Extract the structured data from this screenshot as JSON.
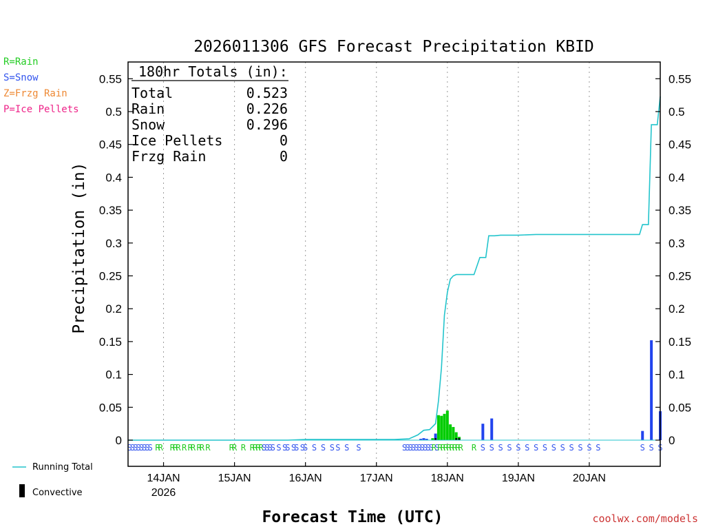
{
  "chart_data": {
    "type": "bar+line",
    "title": "2026011306 GFS Forecast Precipitation KBID",
    "xlabel": "Forecast Time (UTC)",
    "ylabel": "Precipitation (in)",
    "ylim": [
      0,
      0.57
    ],
    "yticks": [
      0,
      0.05,
      0.1,
      0.15,
      0.2,
      0.25,
      0.3,
      0.35,
      0.4,
      0.45,
      0.5,
      0.55
    ],
    "ytick_labels": [
      "0",
      "0.05",
      "0.1",
      "0.15",
      "0.2",
      "0.25",
      "0.3",
      "0.35",
      "0.4",
      "0.45",
      "0.5",
      "0.55"
    ],
    "x_range_hours": [
      6,
      186
    ],
    "x_units": "forecast hour (0 = 2026-01-13 06Z)",
    "x_ticks": [
      {
        "hour": 18,
        "label": "14JAN",
        "sublabel": "2026"
      },
      {
        "hour": 42,
        "label": "15JAN",
        "sublabel": ""
      },
      {
        "hour": 66,
        "label": "16JAN",
        "sublabel": ""
      },
      {
        "hour": 90,
        "label": "17JAN",
        "sublabel": ""
      },
      {
        "hour": 114,
        "label": "18JAN",
        "sublabel": ""
      },
      {
        "hour": 138,
        "label": "19JAN",
        "sublabel": ""
      },
      {
        "hour": 162,
        "label": "20JAN",
        "sublabel": ""
      }
    ],
    "totals_box": {
      "header": "180hr Totals (in):",
      "rows": [
        {
          "label": "Total",
          "value": "0.523"
        },
        {
          "label": "Rain",
          "value": "0.226"
        },
        {
          "label": "Snow",
          "value": "0.296"
        },
        {
          "label": "Ice Pellets",
          "value": "0"
        },
        {
          "label": "Frzg Rain",
          "value": "0"
        }
      ]
    },
    "precip_type_legend": [
      {
        "text": "R=Rain",
        "color": "#22cc22"
      },
      {
        "text": "S=Snow",
        "color": "#3355ee"
      },
      {
        "text": "Z=Frzg Rain",
        "color": "#ee8833"
      },
      {
        "text": "P=Ice Pellets",
        "color": "#ee2288"
      }
    ],
    "series_legend": {
      "running_total": "Running Total",
      "convective": "Convective"
    },
    "colors": {
      "rain": "#00cc00",
      "snow": "#2244ee",
      "running_total": "#22c4cc",
      "convective": "#000000"
    },
    "bars": [
      {
        "hour": 105,
        "value": 0.002,
        "type": "snow"
      },
      {
        "hour": 106,
        "value": 0.003,
        "type": "snow"
      },
      {
        "hour": 107,
        "value": 0.002,
        "type": "snow"
      },
      {
        "hour": 109,
        "value": 0.003,
        "type": "rain"
      },
      {
        "hour": 110,
        "value": 0.01,
        "type": "snow"
      },
      {
        "hour": 111,
        "value": 0.038,
        "type": "rain"
      },
      {
        "hour": 112,
        "value": 0.037,
        "type": "rain"
      },
      {
        "hour": 113,
        "value": 0.04,
        "type": "rain"
      },
      {
        "hour": 114,
        "value": 0.045,
        "type": "rain"
      },
      {
        "hour": 115,
        "value": 0.024,
        "type": "rain"
      },
      {
        "hour": 116,
        "value": 0.02,
        "type": "rain"
      },
      {
        "hour": 117,
        "value": 0.012,
        "type": "rain"
      },
      {
        "hour": 118,
        "value": 0.005,
        "type": "rain"
      },
      {
        "hour": 126,
        "value": 0.025,
        "type": "snow"
      },
      {
        "hour": 129,
        "value": 0.033,
        "type": "snow"
      },
      {
        "hour": 180,
        "value": 0.014,
        "type": "snow"
      },
      {
        "hour": 183,
        "value": 0.152,
        "type": "snow"
      },
      {
        "hour": 186,
        "value": 0.044,
        "type": "snow"
      }
    ],
    "convective_bars": [
      {
        "hour": 110,
        "value": 0.003
      },
      {
        "hour": 117,
        "value": 0.003
      },
      {
        "hour": 118,
        "value": 0.003
      }
    ],
    "running_total": [
      [
        6,
        0
      ],
      [
        60,
        0
      ],
      [
        66,
        0.001
      ],
      [
        96,
        0.001
      ],
      [
        101,
        0.002
      ],
      [
        104,
        0.008
      ],
      [
        106,
        0.015
      ],
      [
        108,
        0.016
      ],
      [
        110,
        0.025
      ],
      [
        111,
        0.06
      ],
      [
        112,
        0.11
      ],
      [
        113,
        0.19
      ],
      [
        114,
        0.225
      ],
      [
        115,
        0.245
      ],
      [
        116,
        0.25
      ],
      [
        117,
        0.252
      ],
      [
        117.5,
        0.252
      ],
      [
        123,
        0.252
      ],
      [
        125,
        0.278
      ],
      [
        127,
        0.278
      ],
      [
        128,
        0.311
      ],
      [
        130,
        0.311
      ],
      [
        132,
        0.312
      ],
      [
        138,
        0.312
      ],
      [
        144,
        0.313
      ],
      [
        162,
        0.313
      ],
      [
        179,
        0.313
      ],
      [
        180,
        0.328
      ],
      [
        182,
        0.328
      ],
      [
        183,
        0.48
      ],
      [
        185,
        0.48
      ],
      [
        186,
        0.523
      ]
    ],
    "ptype_strip": [
      {
        "hour": 6.5,
        "letter": "S"
      },
      {
        "hour": 7.5,
        "letter": "S"
      },
      {
        "hour": 8.5,
        "letter": "S"
      },
      {
        "hour": 9.5,
        "letter": "S"
      },
      {
        "hour": 10.5,
        "letter": "S"
      },
      {
        "hour": 11.5,
        "letter": "S"
      },
      {
        "hour": 12.5,
        "letter": "S"
      },
      {
        "hour": 13.5,
        "letter": "S"
      },
      {
        "hour": 16,
        "letter": "R"
      },
      {
        "hour": 17,
        "letter": "R"
      },
      {
        "hour": 21,
        "letter": "R"
      },
      {
        "hour": 22,
        "letter": "R"
      },
      {
        "hour": 23,
        "letter": "R"
      },
      {
        "hour": 25,
        "letter": "R"
      },
      {
        "hour": 27,
        "letter": "R"
      },
      {
        "hour": 28,
        "letter": "R"
      },
      {
        "hour": 30,
        "letter": "R"
      },
      {
        "hour": 31,
        "letter": "R"
      },
      {
        "hour": 33,
        "letter": "R"
      },
      {
        "hour": 41,
        "letter": "R"
      },
      {
        "hour": 42,
        "letter": "R"
      },
      {
        "hour": 45,
        "letter": "R"
      },
      {
        "hour": 48,
        "letter": "R"
      },
      {
        "hour": 49,
        "letter": "R"
      },
      {
        "hour": 50,
        "letter": "R"
      },
      {
        "hour": 51,
        "letter": "R"
      },
      {
        "hour": 52,
        "letter": "S"
      },
      {
        "hour": 53,
        "letter": "S"
      },
      {
        "hour": 54,
        "letter": "S"
      },
      {
        "hour": 55,
        "letter": "S"
      },
      {
        "hour": 57,
        "letter": "S"
      },
      {
        "hour": 59,
        "letter": "S"
      },
      {
        "hour": 60,
        "letter": "S"
      },
      {
        "hour": 62,
        "letter": "S"
      },
      {
        "hour": 63,
        "letter": "S"
      },
      {
        "hour": 65,
        "letter": "S"
      },
      {
        "hour": 66,
        "letter": "S"
      },
      {
        "hour": 69,
        "letter": "S"
      },
      {
        "hour": 72,
        "letter": "S"
      },
      {
        "hour": 75,
        "letter": "S"
      },
      {
        "hour": 77,
        "letter": "S"
      },
      {
        "hour": 80,
        "letter": "S"
      },
      {
        "hour": 84,
        "letter": "S"
      },
      {
        "hour": 99.5,
        "letter": "S"
      },
      {
        "hour": 100.5,
        "letter": "S"
      },
      {
        "hour": 101.5,
        "letter": "S"
      },
      {
        "hour": 102.5,
        "letter": "S"
      },
      {
        "hour": 103.5,
        "letter": "S"
      },
      {
        "hour": 104.5,
        "letter": "S"
      },
      {
        "hour": 105.5,
        "letter": "S"
      },
      {
        "hour": 106.5,
        "letter": "S"
      },
      {
        "hour": 107.5,
        "letter": "S"
      },
      {
        "hour": 108.5,
        "letter": "S"
      },
      {
        "hour": 109.5,
        "letter": "R"
      },
      {
        "hour": 110.5,
        "letter": "S"
      },
      {
        "hour": 111.5,
        "letter": "R"
      },
      {
        "hour": 112.5,
        "letter": "R"
      },
      {
        "hour": 113.5,
        "letter": "R"
      },
      {
        "hour": 114.5,
        "letter": "R"
      },
      {
        "hour": 115.5,
        "letter": "R"
      },
      {
        "hour": 116.5,
        "letter": "R"
      },
      {
        "hour": 117.5,
        "letter": "R"
      },
      {
        "hour": 118.5,
        "letter": "R"
      },
      {
        "hour": 123,
        "letter": "R"
      },
      {
        "hour": 126,
        "letter": "S"
      },
      {
        "hour": 129,
        "letter": "S"
      },
      {
        "hour": 132,
        "letter": "S"
      },
      {
        "hour": 135,
        "letter": "S"
      },
      {
        "hour": 138,
        "letter": "S"
      },
      {
        "hour": 141,
        "letter": "S"
      },
      {
        "hour": 144,
        "letter": "S"
      },
      {
        "hour": 147,
        "letter": "S"
      },
      {
        "hour": 150,
        "letter": "S"
      },
      {
        "hour": 153,
        "letter": "S"
      },
      {
        "hour": 156,
        "letter": "S"
      },
      {
        "hour": 159,
        "letter": "S"
      },
      {
        "hour": 162,
        "letter": "S"
      },
      {
        "hour": 165,
        "letter": "S"
      },
      {
        "hour": 180,
        "letter": "S"
      },
      {
        "hour": 183,
        "letter": "S"
      },
      {
        "hour": 186,
        "letter": "S"
      }
    ],
    "watermark": "coolwx.com/models"
  }
}
